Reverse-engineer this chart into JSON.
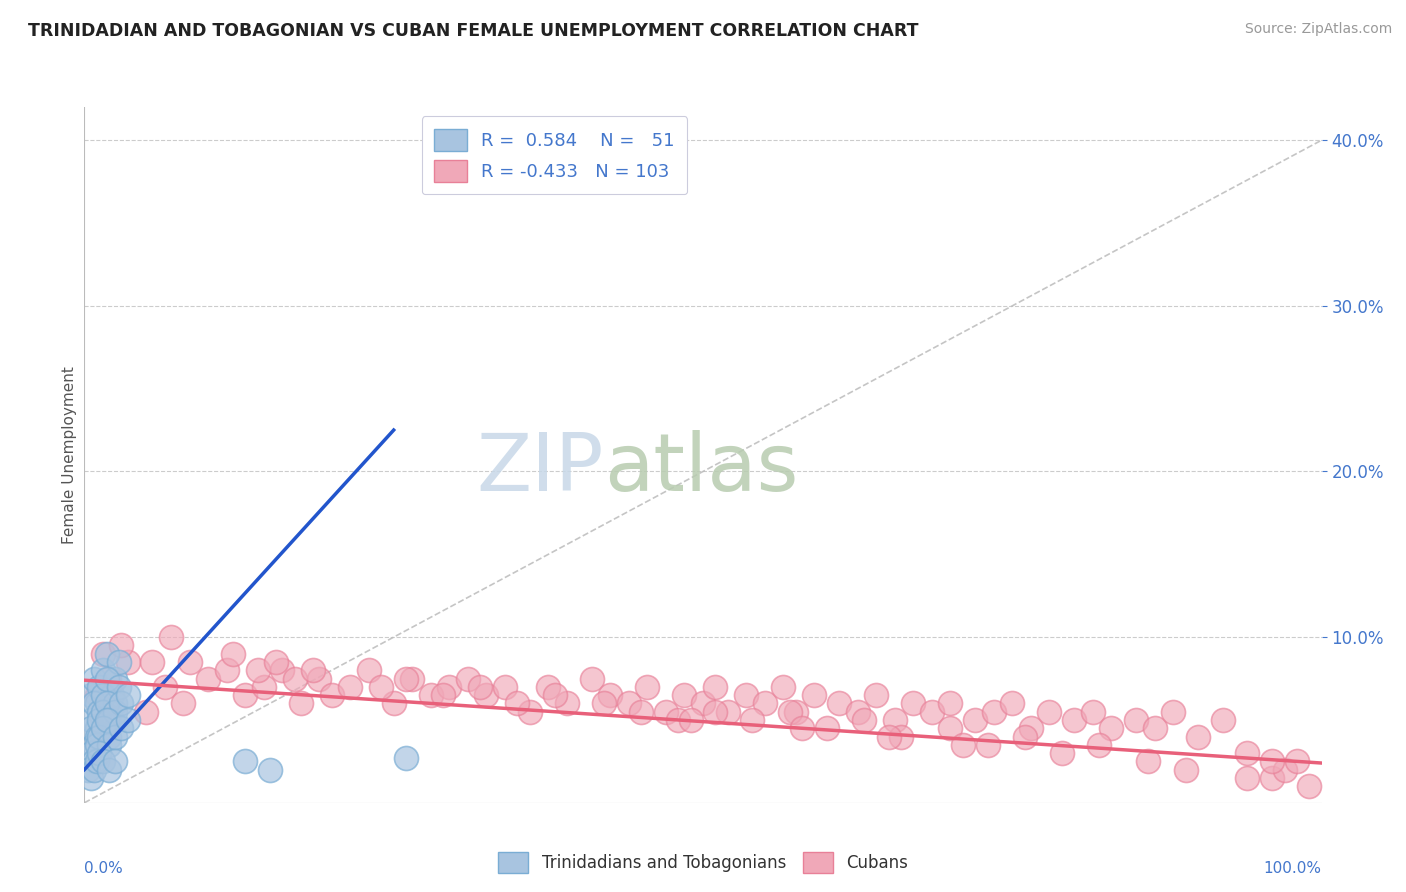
{
  "title": "TRINIDADIAN AND TOBAGONIAN VS CUBAN FEMALE UNEMPLOYMENT CORRELATION CHART",
  "source": "Source: ZipAtlas.com",
  "ylabel": "Female Unemployment",
  "xmin": 0.0,
  "xmax": 1.0,
  "ymin": 0.0,
  "ymax": 0.42,
  "yticks": [
    0.1,
    0.2,
    0.3,
    0.4
  ],
  "ytick_labels": [
    "10.0%",
    "20.0%",
    "30.0%",
    "40.0%"
  ],
  "blue_color": "#A8C4E0",
  "blue_edge_color": "#7AADD4",
  "pink_color": "#F0A8B8",
  "pink_edge_color": "#E88098",
  "blue_line_color": "#2255CC",
  "pink_line_color": "#E8607A",
  "tick_label_color": "#4477CC",
  "grid_color": "#CCCCCC",
  "ref_line_color": "#BBBBBB",
  "watermark_zip_color": "#C8D8E8",
  "watermark_atlas_color": "#B8CCB0",
  "blue_scatter_x": [
    0.005,
    0.008,
    0.01,
    0.012,
    0.015,
    0.018,
    0.02,
    0.022,
    0.025,
    0.028,
    0.005,
    0.008,
    0.01,
    0.012,
    0.015,
    0.018,
    0.02,
    0.022,
    0.025,
    0.028,
    0.005,
    0.008,
    0.01,
    0.012,
    0.015,
    0.018,
    0.02,
    0.025,
    0.03,
    0.035,
    0.005,
    0.008,
    0.01,
    0.012,
    0.015,
    0.018,
    0.02,
    0.025,
    0.03,
    0.035,
    0.003,
    0.005,
    0.008,
    0.01,
    0.012,
    0.015,
    0.02,
    0.025,
    0.13,
    0.15,
    0.26
  ],
  "blue_scatter_y": [
    0.065,
    0.075,
    0.06,
    0.07,
    0.08,
    0.09,
    0.055,
    0.065,
    0.075,
    0.085,
    0.05,
    0.06,
    0.045,
    0.055,
    0.065,
    0.075,
    0.04,
    0.05,
    0.06,
    0.07,
    0.045,
    0.035,
    0.04,
    0.05,
    0.055,
    0.06,
    0.05,
    0.055,
    0.06,
    0.065,
    0.03,
    0.025,
    0.035,
    0.04,
    0.045,
    0.05,
    0.035,
    0.04,
    0.045,
    0.05,
    0.02,
    0.015,
    0.02,
    0.025,
    0.03,
    0.025,
    0.02,
    0.025,
    0.025,
    0.02,
    0.027
  ],
  "pink_scatter_x": [
    0.01,
    0.02,
    0.035,
    0.05,
    0.065,
    0.08,
    0.1,
    0.115,
    0.13,
    0.145,
    0.16,
    0.175,
    0.19,
    0.2,
    0.215,
    0.23,
    0.25,
    0.265,
    0.28,
    0.295,
    0.31,
    0.325,
    0.34,
    0.36,
    0.375,
    0.39,
    0.41,
    0.425,
    0.44,
    0.455,
    0.47,
    0.485,
    0.5,
    0.51,
    0.52,
    0.535,
    0.55,
    0.565,
    0.575,
    0.59,
    0.61,
    0.625,
    0.64,
    0.655,
    0.67,
    0.685,
    0.7,
    0.72,
    0.735,
    0.75,
    0.765,
    0.78,
    0.8,
    0.815,
    0.83,
    0.85,
    0.865,
    0.88,
    0.9,
    0.92,
    0.015,
    0.03,
    0.055,
    0.07,
    0.085,
    0.12,
    0.14,
    0.155,
    0.17,
    0.185,
    0.24,
    0.26,
    0.29,
    0.32,
    0.35,
    0.38,
    0.42,
    0.45,
    0.48,
    0.51,
    0.54,
    0.57,
    0.6,
    0.63,
    0.66,
    0.7,
    0.73,
    0.76,
    0.79,
    0.82,
    0.86,
    0.89,
    0.94,
    0.49,
    0.96,
    0.97,
    0.98,
    0.99,
    0.58,
    0.65,
    0.71,
    0.94,
    0.96
  ],
  "pink_scatter_y": [
    0.065,
    0.075,
    0.085,
    0.055,
    0.07,
    0.06,
    0.075,
    0.08,
    0.065,
    0.07,
    0.08,
    0.06,
    0.075,
    0.065,
    0.07,
    0.08,
    0.06,
    0.075,
    0.065,
    0.07,
    0.075,
    0.065,
    0.07,
    0.055,
    0.07,
    0.06,
    0.075,
    0.065,
    0.06,
    0.07,
    0.055,
    0.065,
    0.06,
    0.07,
    0.055,
    0.065,
    0.06,
    0.07,
    0.055,
    0.065,
    0.06,
    0.055,
    0.065,
    0.05,
    0.06,
    0.055,
    0.06,
    0.05,
    0.055,
    0.06,
    0.045,
    0.055,
    0.05,
    0.055,
    0.045,
    0.05,
    0.045,
    0.055,
    0.04,
    0.05,
    0.09,
    0.095,
    0.085,
    0.1,
    0.085,
    0.09,
    0.08,
    0.085,
    0.075,
    0.08,
    0.07,
    0.075,
    0.065,
    0.07,
    0.06,
    0.065,
    0.06,
    0.055,
    0.05,
    0.055,
    0.05,
    0.055,
    0.045,
    0.05,
    0.04,
    0.045,
    0.035,
    0.04,
    0.03,
    0.035,
    0.025,
    0.02,
    0.015,
    0.05,
    0.015,
    0.02,
    0.025,
    0.01,
    0.045,
    0.04,
    0.035,
    0.03,
    0.025
  ]
}
